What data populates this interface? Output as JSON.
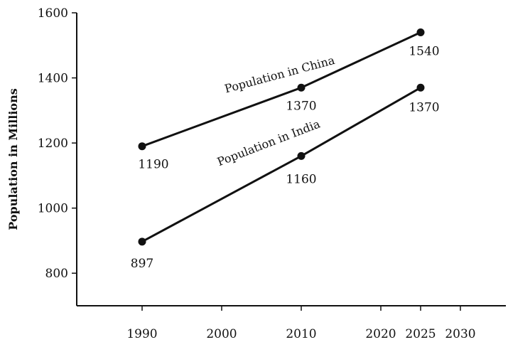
{
  "chart_data": {
    "type": "line",
    "title": "",
    "xlabel": "",
    "ylabel": "Population in Millions",
    "xlim": [
      1990,
      2030
    ],
    "ylim": [
      700,
      1600
    ],
    "x_ticks": [
      1990,
      2000,
      2010,
      2020,
      2025,
      2030
    ],
    "y_ticks": [
      800,
      1000,
      1200,
      1400,
      1600
    ],
    "grid": false,
    "legend": "none",
    "series": [
      {
        "name": "Population in China",
        "x": [
          1990,
          2010,
          2025
        ],
        "values": [
          1190,
          1370,
          1540
        ],
        "labels": [
          "1190",
          "1370",
          "1540"
        ],
        "color": "#111111"
      },
      {
        "name": "Population in India",
        "x": [
          1990,
          2010,
          2025
        ],
        "values": [
          897,
          1160,
          1370
        ],
        "labels": [
          "897",
          "1160",
          "1370"
        ],
        "color": "#111111"
      }
    ]
  }
}
